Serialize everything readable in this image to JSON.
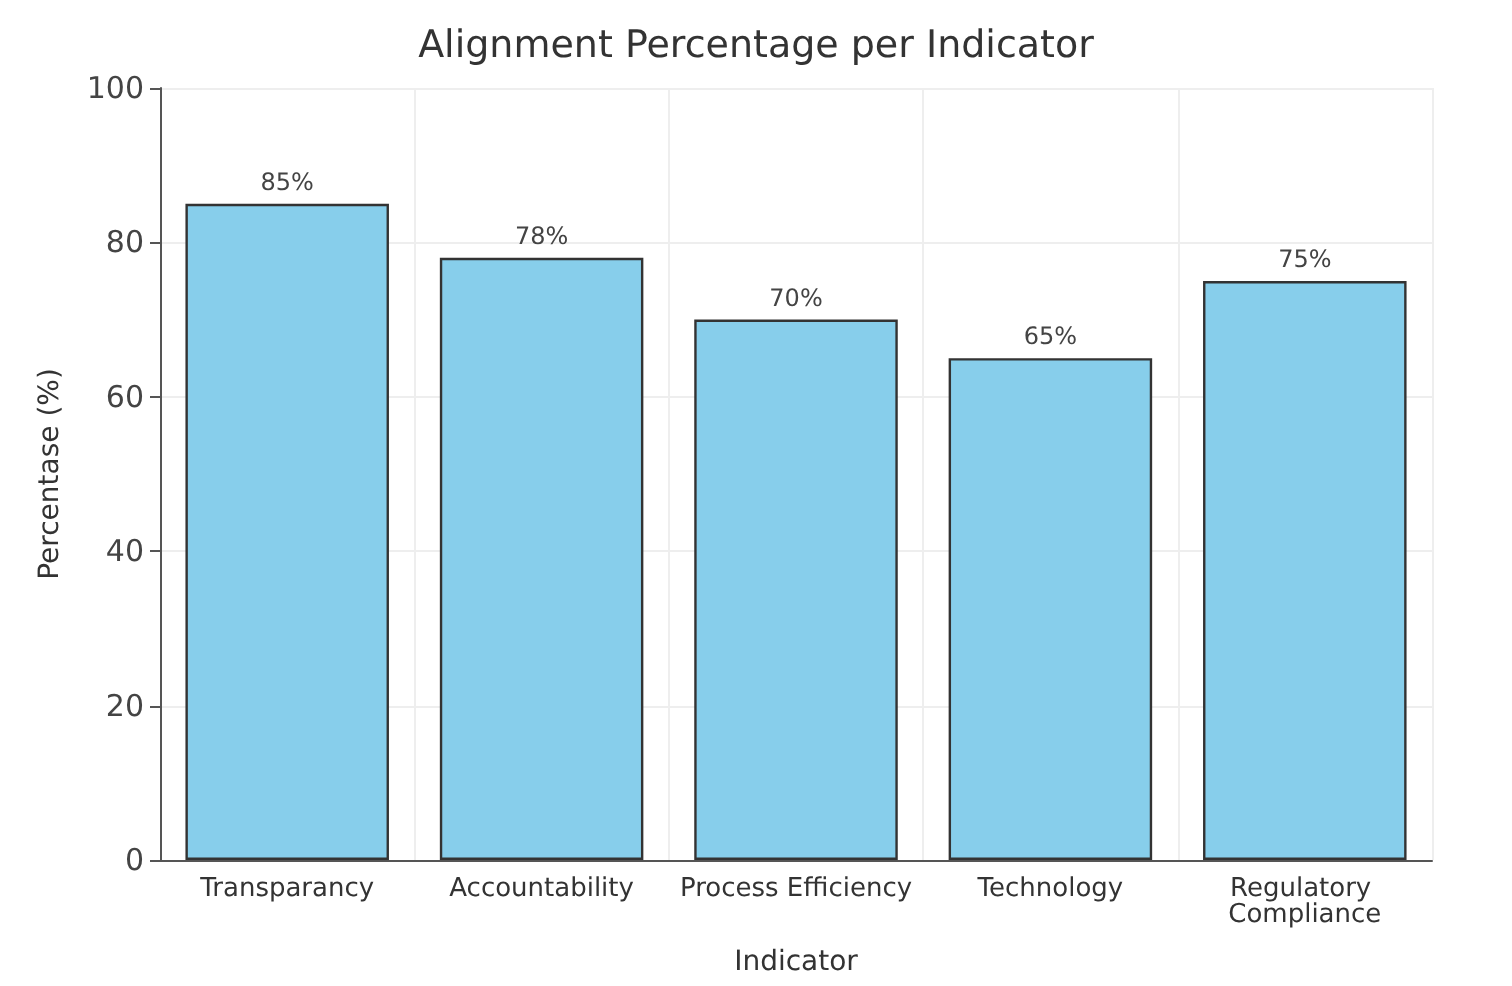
{
  "chart_data": {
    "type": "bar",
    "title": "Alignment Percentage per Indicator",
    "xlabel": "Indicator",
    "ylabel": "Percentase (%)",
    "categories": [
      "Transparancy",
      "Accountability",
      "Process Efficiency",
      "Technology",
      "Regulatory Compliance"
    ],
    "values": [
      85,
      78,
      70,
      65,
      75
    ],
    "color": "#87ceeb",
    "value_labels": [
      "85%",
      "78%",
      "70%",
      "65%",
      "75%"
    ],
    "ylim": [
      0,
      100
    ],
    "yticks": [
      0,
      20,
      40,
      60,
      80,
      100
    ],
    "grid": true
  }
}
